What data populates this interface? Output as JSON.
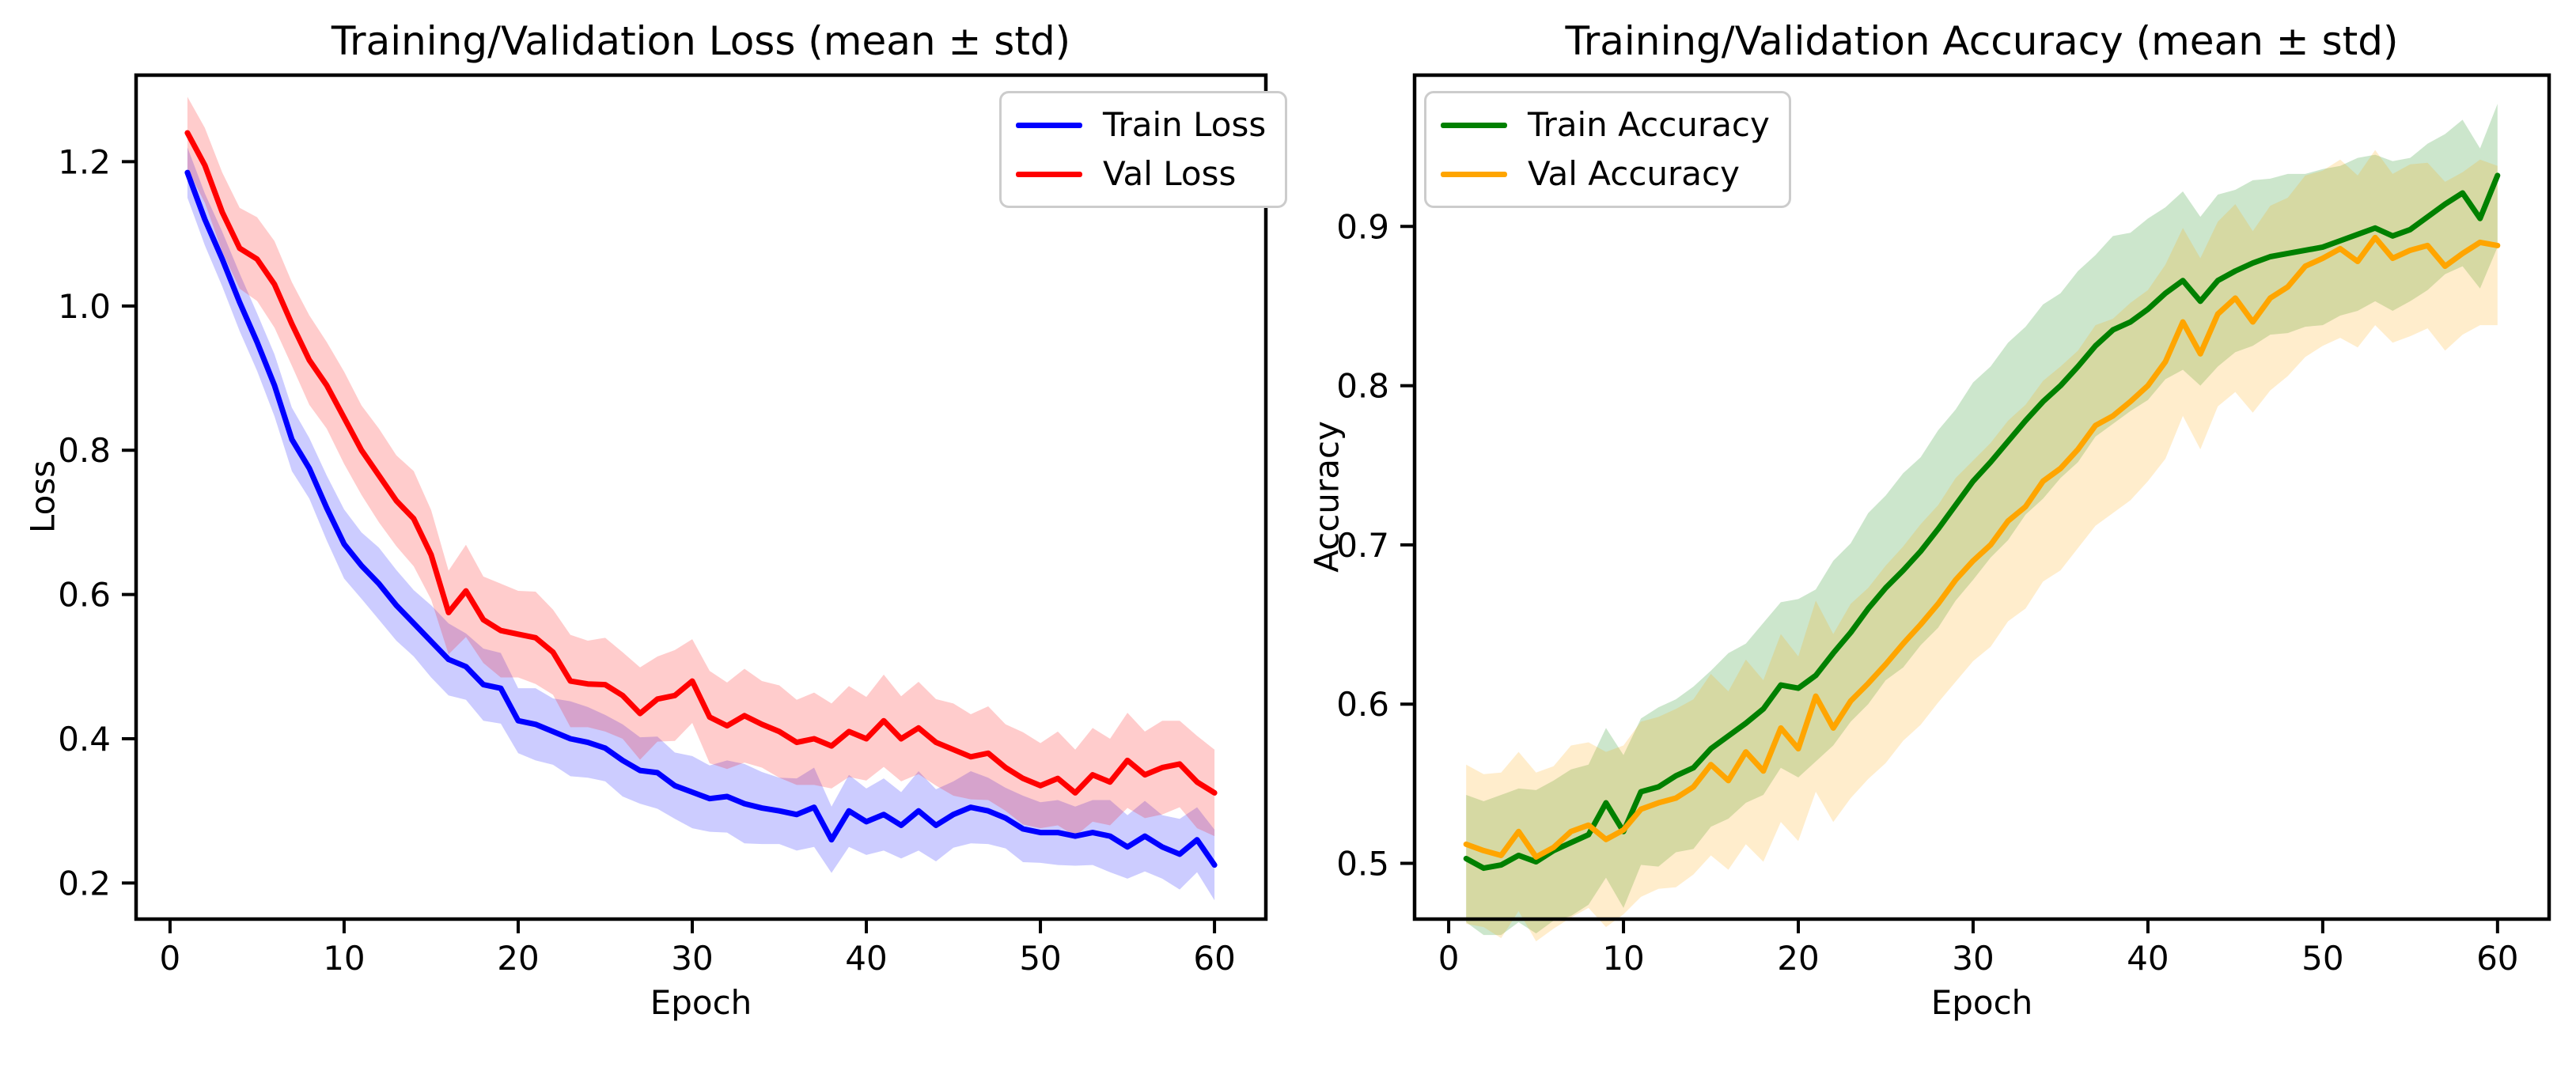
{
  "figure": {
    "background": "#ffffff",
    "axis_color": "#000000",
    "text_color": "#000000",
    "legend_border_color": "#cccccc"
  },
  "chart_data": [
    {
      "type": "line",
      "title": "Training/Validation Loss (mean ± std)",
      "xlabel": "Epoch",
      "ylabel": "Loss",
      "grid": false,
      "legend_position": "upper right",
      "band_alpha": 0.2,
      "xlim": [
        -1.95,
        62.95
      ],
      "ylim": [
        0.15,
        1.32
      ],
      "xticks": [
        0,
        10,
        20,
        30,
        40,
        50,
        60
      ],
      "xtick_labels": [
        "0",
        "10",
        "20",
        "30",
        "40",
        "50",
        "60"
      ],
      "yticks": [
        0.2,
        0.4,
        0.6,
        0.8,
        1.0,
        1.2
      ],
      "ytick_labels": [
        "0.2",
        "0.4",
        "0.6",
        "0.8",
        "1.0",
        "1.2"
      ],
      "x": [
        1,
        2,
        3,
        4,
        5,
        6,
        7,
        8,
        9,
        10,
        11,
        12,
        13,
        14,
        15,
        16,
        17,
        18,
        19,
        20,
        21,
        22,
        23,
        24,
        25,
        26,
        27,
        28,
        29,
        30,
        31,
        32,
        33,
        34,
        35,
        36,
        37,
        38,
        39,
        40,
        41,
        42,
        43,
        44,
        45,
        46,
        47,
        48,
        49,
        50,
        51,
        52,
        53,
        54,
        55,
        56,
        57,
        58,
        59,
        60
      ],
      "series": [
        {
          "name": "Train Loss",
          "color": "#0000ff",
          "mean": [
            1.185,
            1.12,
            1.065,
            1.005,
            0.95,
            0.89,
            0.815,
            0.775,
            0.72,
            0.67,
            0.64,
            0.615,
            0.585,
            0.56,
            0.535,
            0.51,
            0.5,
            0.475,
            0.47,
            0.425,
            0.42,
            0.41,
            0.4,
            0.395,
            0.387,
            0.37,
            0.356,
            0.353,
            0.335,
            0.326,
            0.317,
            0.32,
            0.31,
            0.304,
            0.3,
            0.295,
            0.305,
            0.26,
            0.3,
            0.285,
            0.295,
            0.28,
            0.3,
            0.28,
            0.295,
            0.305,
            0.3,
            0.29,
            0.275,
            0.27,
            0.27,
            0.265,
            0.27,
            0.265,
            0.25,
            0.265,
            0.25,
            0.24,
            0.26,
            0.225
          ],
          "std": [
            0.035,
            0.036,
            0.038,
            0.04,
            0.04,
            0.043,
            0.044,
            0.042,
            0.045,
            0.048,
            0.046,
            0.05,
            0.049,
            0.046,
            0.05,
            0.05,
            0.046,
            0.05,
            0.049,
            0.045,
            0.05,
            0.046,
            0.052,
            0.049,
            0.046,
            0.05,
            0.046,
            0.05,
            0.046,
            0.05,
            0.046,
            0.05,
            0.055,
            0.05,
            0.046,
            0.05,
            0.055,
            0.046,
            0.05,
            0.046,
            0.05,
            0.046,
            0.055,
            0.05,
            0.046,
            0.05,
            0.046,
            0.042,
            0.046,
            0.042,
            0.045,
            0.041,
            0.045,
            0.05,
            0.044,
            0.049,
            0.044,
            0.049,
            0.045,
            0.049
          ]
        },
        {
          "name": "Val Loss",
          "color": "#ff0000",
          "mean": [
            1.24,
            1.195,
            1.13,
            1.08,
            1.065,
            1.03,
            0.975,
            0.925,
            0.89,
            0.845,
            0.8,
            0.765,
            0.73,
            0.705,
            0.655,
            0.575,
            0.605,
            0.565,
            0.55,
            0.545,
            0.54,
            0.52,
            0.48,
            0.476,
            0.475,
            0.46,
            0.435,
            0.455,
            0.46,
            0.48,
            0.43,
            0.418,
            0.432,
            0.42,
            0.41,
            0.395,
            0.4,
            0.39,
            0.41,
            0.4,
            0.425,
            0.4,
            0.415,
            0.395,
            0.385,
            0.375,
            0.38,
            0.36,
            0.345,
            0.335,
            0.345,
            0.325,
            0.35,
            0.34,
            0.37,
            0.35,
            0.36,
            0.365,
            0.34,
            0.325
          ],
          "std": [
            0.05,
            0.052,
            0.055,
            0.056,
            0.058,
            0.06,
            0.058,
            0.062,
            0.06,
            0.064,
            0.062,
            0.065,
            0.063,
            0.066,
            0.062,
            0.058,
            0.064,
            0.06,
            0.065,
            0.06,
            0.064,
            0.059,
            0.064,
            0.06,
            0.065,
            0.06,
            0.064,
            0.059,
            0.063,
            0.058,
            0.064,
            0.06,
            0.065,
            0.06,
            0.064,
            0.059,
            0.064,
            0.059,
            0.063,
            0.058,
            0.064,
            0.059,
            0.064,
            0.06,
            0.064,
            0.059,
            0.065,
            0.06,
            0.064,
            0.059,
            0.065,
            0.06,
            0.065,
            0.06,
            0.066,
            0.06,
            0.065,
            0.06,
            0.064,
            0.06
          ]
        }
      ]
    },
    {
      "type": "line",
      "title": "Training/Validation Accuracy (mean ± std)",
      "xlabel": "Epoch",
      "ylabel": "Accuracy",
      "grid": false,
      "legend_position": "upper left",
      "band_alpha": 0.2,
      "xlim": [
        -1.95,
        62.95
      ],
      "ylim": [
        0.465,
        0.995
      ],
      "xticks": [
        0,
        10,
        20,
        30,
        40,
        50,
        60
      ],
      "xtick_labels": [
        "0",
        "10",
        "20",
        "30",
        "40",
        "50",
        "60"
      ],
      "yticks": [
        0.5,
        0.6,
        0.7,
        0.8,
        0.9
      ],
      "ytick_labels": [
        "0.5",
        "0.6",
        "0.7",
        "0.8",
        "0.9"
      ],
      "x": [
        1,
        2,
        3,
        4,
        5,
        6,
        7,
        8,
        9,
        10,
        11,
        12,
        13,
        14,
        15,
        16,
        17,
        18,
        19,
        20,
        21,
        22,
        23,
        24,
        25,
        26,
        27,
        28,
        29,
        30,
        31,
        32,
        33,
        34,
        35,
        36,
        37,
        38,
        39,
        40,
        41,
        42,
        43,
        44,
        45,
        46,
        47,
        48,
        49,
        50,
        51,
        52,
        53,
        54,
        55,
        56,
        57,
        58,
        59,
        60
      ],
      "series": [
        {
          "name": "Train Accuracy",
          "color": "#008000",
          "mean": [
            0.503,
            0.497,
            0.499,
            0.505,
            0.501,
            0.508,
            0.513,
            0.518,
            0.538,
            0.52,
            0.545,
            0.548,
            0.555,
            0.56,
            0.572,
            0.58,
            0.588,
            0.597,
            0.612,
            0.61,
            0.618,
            0.632,
            0.645,
            0.66,
            0.673,
            0.684,
            0.696,
            0.71,
            0.725,
            0.74,
            0.752,
            0.765,
            0.778,
            0.79,
            0.8,
            0.812,
            0.825,
            0.835,
            0.84,
            0.848,
            0.858,
            0.866,
            0.853,
            0.866,
            0.872,
            0.877,
            0.881,
            0.883,
            0.885,
            0.887,
            0.891,
            0.895,
            0.899,
            0.894,
            0.898,
            0.906,
            0.914,
            0.921,
            0.905,
            0.932
          ],
          "std": [
            0.04,
            0.042,
            0.044,
            0.042,
            0.045,
            0.044,
            0.046,
            0.044,
            0.047,
            0.048,
            0.046,
            0.05,
            0.048,
            0.051,
            0.049,
            0.052,
            0.05,
            0.054,
            0.052,
            0.056,
            0.054,
            0.058,
            0.056,
            0.06,
            0.058,
            0.061,
            0.059,
            0.062,
            0.06,
            0.062,
            0.06,
            0.062,
            0.059,
            0.061,
            0.058,
            0.06,
            0.057,
            0.059,
            0.056,
            0.057,
            0.054,
            0.056,
            0.053,
            0.054,
            0.051,
            0.052,
            0.049,
            0.05,
            0.048,
            0.049,
            0.047,
            0.048,
            0.046,
            0.047,
            0.045,
            0.046,
            0.044,
            0.046,
            0.044,
            0.045
          ]
        },
        {
          "name": "Val Accuracy",
          "color": "#ffa500",
          "mean": [
            0.512,
            0.508,
            0.505,
            0.52,
            0.504,
            0.51,
            0.52,
            0.524,
            0.515,
            0.521,
            0.534,
            0.538,
            0.541,
            0.548,
            0.562,
            0.552,
            0.57,
            0.558,
            0.585,
            0.572,
            0.605,
            0.585,
            0.602,
            0.613,
            0.625,
            0.638,
            0.65,
            0.663,
            0.678,
            0.69,
            0.7,
            0.715,
            0.724,
            0.74,
            0.748,
            0.76,
            0.775,
            0.781,
            0.79,
            0.8,
            0.815,
            0.84,
            0.82,
            0.845,
            0.855,
            0.84,
            0.855,
            0.862,
            0.875,
            0.88,
            0.886,
            0.878,
            0.893,
            0.88,
            0.885,
            0.888,
            0.875,
            0.883,
            0.89,
            0.888
          ],
          "std": [
            0.05,
            0.048,
            0.052,
            0.05,
            0.053,
            0.051,
            0.054,
            0.052,
            0.055,
            0.053,
            0.055,
            0.054,
            0.056,
            0.055,
            0.057,
            0.056,
            0.058,
            0.057,
            0.059,
            0.058,
            0.06,
            0.059,
            0.061,
            0.06,
            0.062,
            0.061,
            0.063,
            0.062,
            0.064,
            0.063,
            0.064,
            0.063,
            0.064,
            0.063,
            0.064,
            0.062,
            0.063,
            0.061,
            0.062,
            0.06,
            0.061,
            0.059,
            0.06,
            0.058,
            0.059,
            0.057,
            0.058,
            0.056,
            0.057,
            0.055,
            0.056,
            0.054,
            0.055,
            0.053,
            0.054,
            0.052,
            0.053,
            0.051,
            0.052,
            0.05
          ]
        }
      ]
    }
  ]
}
